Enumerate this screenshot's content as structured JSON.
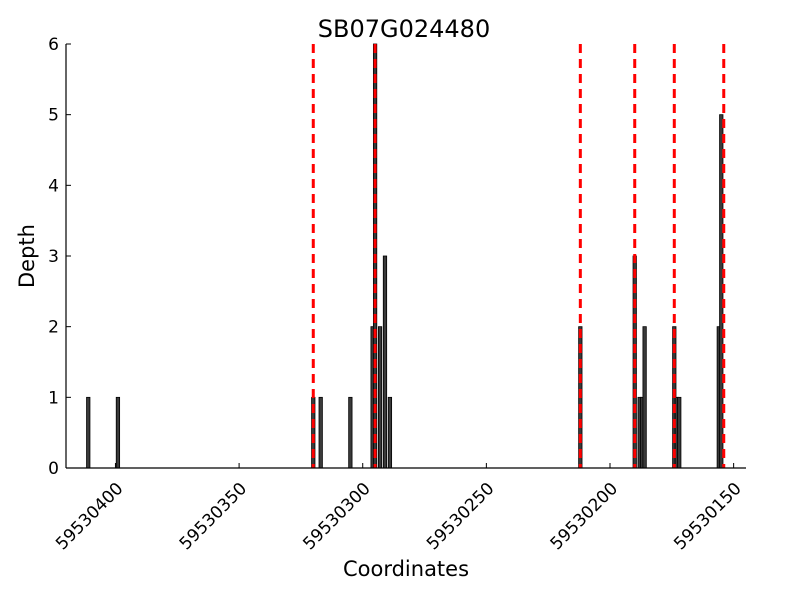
{
  "chart_data": {
    "type": "bar",
    "title": "SB07G024480",
    "xlabel": "Coordinates",
    "ylabel": "Depth",
    "xlim": [
      59530420,
      59530145
    ],
    "ylim": [
      0,
      6
    ],
    "x_axis_reversed": true,
    "x_ticks": [
      {
        "value": 59530400,
        "label": "59530400"
      },
      {
        "value": 59530350,
        "label": "59530350"
      },
      {
        "value": 59530300,
        "label": "59530300"
      },
      {
        "value": 59530250,
        "label": "59530250"
      },
      {
        "value": 59530200,
        "label": "59530200"
      },
      {
        "value": 59530150,
        "label": "59530150"
      }
    ],
    "y_ticks": [
      {
        "value": 0,
        "label": "0"
      },
      {
        "value": 1,
        "label": "1"
      },
      {
        "value": 2,
        "label": "2"
      },
      {
        "value": 3,
        "label": "3"
      },
      {
        "value": 4,
        "label": "4"
      },
      {
        "value": 5,
        "label": "5"
      },
      {
        "value": 6,
        "label": "6"
      }
    ],
    "bars": [
      {
        "x": 59530411,
        "depth": 1
      },
      {
        "x": 59530399,
        "depth": 1
      },
      {
        "x": 59530320,
        "depth": 1
      },
      {
        "x": 59530317,
        "depth": 1
      },
      {
        "x": 59530305,
        "depth": 1
      },
      {
        "x": 59530296,
        "depth": 2
      },
      {
        "x": 59530295,
        "depth": 6
      },
      {
        "x": 59530293,
        "depth": 2
      },
      {
        "x": 59530291,
        "depth": 3
      },
      {
        "x": 59530289,
        "depth": 1
      },
      {
        "x": 59530212,
        "depth": 2
      },
      {
        "x": 59530190,
        "depth": 3
      },
      {
        "x": 59530188,
        "depth": 1
      },
      {
        "x": 59530187,
        "depth": 1
      },
      {
        "x": 59530186,
        "depth": 2
      },
      {
        "x": 59530174,
        "depth": 2
      },
      {
        "x": 59530173,
        "depth": 1
      },
      {
        "x": 59530172,
        "depth": 1
      },
      {
        "x": 59530156,
        "depth": 2
      },
      {
        "x": 59530155,
        "depth": 5
      }
    ],
    "vlines": [
      59530320,
      59530295,
      59530212,
      59530190,
      59530174,
      59530154
    ],
    "bar_color": "#000000",
    "vline_color": "#ff0000",
    "grid": false,
    "legend": "none"
  }
}
